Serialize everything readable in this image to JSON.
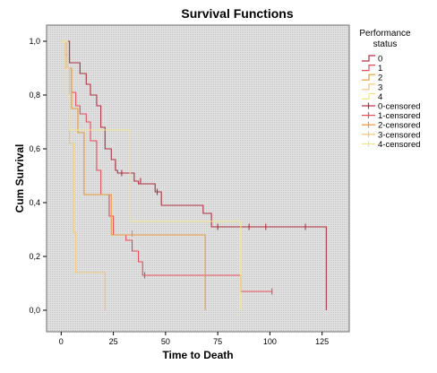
{
  "chart_data": {
    "type": "line",
    "title": "Survival Functions",
    "xlabel": "Time to Death",
    "ylabel": "Cum Survival",
    "xlim": [
      -7,
      138
    ],
    "ylim": [
      -0.08,
      1.06
    ],
    "xticks": [
      0,
      25,
      50,
      75,
      100,
      125
    ],
    "yticks": [
      0.0,
      0.2,
      0.4,
      0.6,
      0.8,
      1.0
    ],
    "ytick_labels": [
      "0,0",
      "0,2",
      "0,4",
      "0,6",
      "0,8",
      "1,0"
    ],
    "xtick_labels": [
      "0",
      "25",
      "50",
      "75",
      "100",
      "125"
    ],
    "grid": false,
    "legend": {
      "title_lines": [
        "Performance",
        "status"
      ],
      "placement": "right",
      "entries": [
        "0",
        "1",
        "2",
        "3",
        "4",
        "0-censored",
        "1-censored",
        "2-censored",
        "3-censored",
        "4-censored"
      ]
    },
    "series": [
      {
        "name": "0",
        "color": "#b03040",
        "x": [
          0,
          4,
          9,
          12,
          14,
          17,
          19,
          21,
          24,
          26,
          27,
          35,
          37,
          45,
          48,
          68,
          72,
          127,
          127
        ],
        "y": [
          1.0,
          0.92,
          0.88,
          0.84,
          0.8,
          0.76,
          0.68,
          0.6,
          0.56,
          0.52,
          0.51,
          0.48,
          0.47,
          0.44,
          0.39,
          0.36,
          0.31,
          0.31,
          0.0
        ],
        "censored": [
          {
            "x": 26,
            "y": 0.54
          },
          {
            "x": 29,
            "y": 0.51
          },
          {
            "x": 38,
            "y": 0.48
          },
          {
            "x": 46,
            "y": 0.44
          },
          {
            "x": 75,
            "y": 0.31
          },
          {
            "x": 90,
            "y": 0.31
          },
          {
            "x": 98,
            "y": 0.31
          },
          {
            "x": 117,
            "y": 0.31
          }
        ]
      },
      {
        "name": "1",
        "color": "#e64e5a",
        "x": [
          0,
          3,
          5,
          7,
          9,
          12,
          14,
          17,
          19,
          23,
          25,
          31,
          34,
          37,
          39,
          86,
          101
        ],
        "y": [
          1.0,
          0.9,
          0.81,
          0.76,
          0.73,
          0.7,
          0.63,
          0.52,
          0.43,
          0.35,
          0.28,
          0.26,
          0.22,
          0.18,
          0.13,
          0.07,
          0.07
        ],
        "censored": [
          {
            "x": 40,
            "y": 0.13
          },
          {
            "x": 101,
            "y": 0.07
          }
        ]
      },
      {
        "name": "2",
        "color": "#e89a3a",
        "x": [
          0,
          2,
          3,
          5,
          8,
          11,
          22,
          24,
          69,
          69
        ],
        "y": [
          1.0,
          0.95,
          0.9,
          0.75,
          0.66,
          0.43,
          0.43,
          0.28,
          0.28,
          0.0
        ],
        "censored": [
          {
            "x": 34,
            "y": 0.285
          }
        ]
      },
      {
        "name": "3",
        "color": "#efc878",
        "x": [
          0,
          2,
          4,
          6,
          7,
          21,
          21
        ],
        "y": [
          1.0,
          0.9,
          0.62,
          0.29,
          0.14,
          0.14,
          0.0
        ],
        "censored": []
      },
      {
        "name": "4",
        "color": "#f3e58a",
        "x": [
          0,
          3,
          4,
          32,
          33,
          86,
          86
        ],
        "y": [
          1.0,
          0.8,
          0.67,
          0.67,
          0.33,
          0.33,
          0.0
        ],
        "censored": []
      }
    ]
  }
}
